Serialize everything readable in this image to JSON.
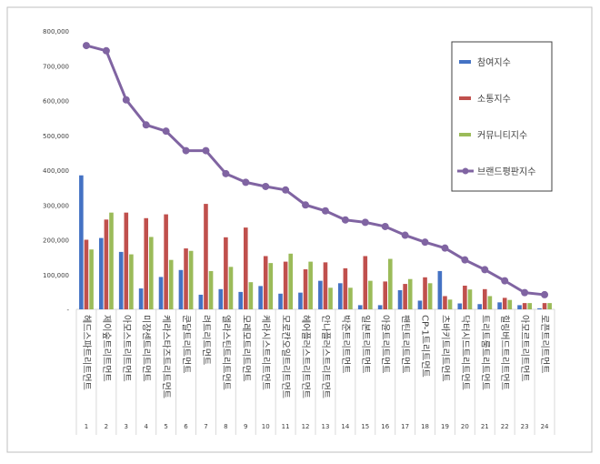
{
  "chart_data": {
    "type": "bar",
    "title": "",
    "xlabel": "",
    "ylabel": "",
    "ylim": [
      0,
      800000
    ],
    "y_ticks": [
      "-",
      "100,000",
      "200,000",
      "300,000",
      "400,000",
      "500,000",
      "600,000",
      "700,000",
      "800,000"
    ],
    "grid": false,
    "legend_position": "top-right",
    "categories": [
      "헤드스파트리트먼트",
      "제이숲트리트먼트",
      "아모스트리트먼트",
      "미쟝센트리트먼트",
      "케라스타즈트리트먼트",
      "쿤달트리트먼트",
      "려트리트먼트",
      "엘라스틴트리트먼트",
      "모레모트리트먼트",
      "케라시스트리트먼트",
      "모로칸오일트리트먼트",
      "헤어플러스트리트먼트",
      "안나플러스트리트먼트",
      "박준트리트먼트",
      "일본트리트먼트",
      "아윤트리트먼트",
      "팬틴트리트먼트",
      "CP-1트리트먼트",
      "츠바키트리트먼트",
      "닥터시드트리트먼트",
      "트리트룸트리트먼트",
      "힐링버드트리트먼트",
      "아모르트리트먼트",
      "로픈트리트먼트"
    ],
    "ranks": [
      "1",
      "2",
      "3",
      "4",
      "5",
      "6",
      "7",
      "8",
      "9",
      "10",
      "11",
      "12",
      "13",
      "14",
      "15",
      "16",
      "17",
      "18",
      "19",
      "20",
      "21",
      "22",
      "23",
      "24"
    ],
    "series": [
      {
        "name": "참여지수",
        "type": "bar",
        "color": "#4472c4",
        "values": [
          385000,
          205000,
          165000,
          60000,
          93000,
          113000,
          42000,
          58000,
          50000,
          67000,
          45000,
          48000,
          82000,
          75000,
          12000,
          12000,
          55000,
          25000,
          110000,
          17000,
          15000,
          20000,
          12000,
          3000
        ]
      },
      {
        "name": "소통지수",
        "type": "bar",
        "color": "#c0504d",
        "values": [
          200000,
          258000,
          278000,
          262000,
          273000,
          175000,
          303000,
          207000,
          235000,
          153000,
          137000,
          115000,
          135000,
          118000,
          153000,
          80000,
          73000,
          92000,
          38000,
          68000,
          58000,
          33000,
          18000,
          18000
        ]
      },
      {
        "name": "커뮤니티지수",
        "type": "bar",
        "color": "#9bbb59",
        "values": [
          172000,
          278000,
          158000,
          208000,
          142000,
          168000,
          110000,
          122000,
          78000,
          133000,
          160000,
          137000,
          62000,
          62000,
          82000,
          145000,
          87000,
          75000,
          28000,
          57000,
          38000,
          27000,
          18000,
          18000
        ]
      },
      {
        "name": "브랜드평판지수",
        "type": "line",
        "color": "#8064a2",
        "values": [
          758000,
          743000,
          602000,
          530000,
          512000,
          456000,
          456000,
          390000,
          365000,
          353000,
          343000,
          300000,
          283000,
          257000,
          250000,
          238000,
          213000,
          193000,
          176000,
          142000,
          114000,
          82000,
          48000,
          42000
        ]
      }
    ]
  }
}
